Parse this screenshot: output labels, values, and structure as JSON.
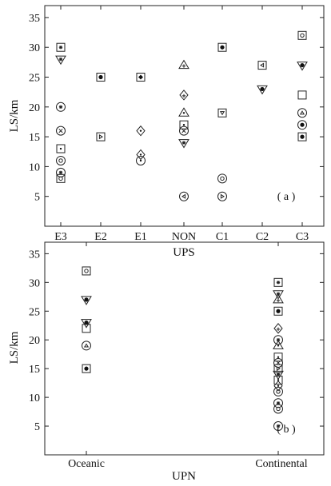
{
  "chart_data": [
    {
      "id": "a",
      "type": "scatter",
      "panel_label": "( a )",
      "xlabel": "UPS",
      "ylabel": "LS/km",
      "categories": [
        "E3",
        "E2",
        "E1",
        "NON",
        "C1",
        "C2",
        "C3"
      ],
      "ylim": [
        0,
        37
      ],
      "yticks": [
        5,
        10,
        15,
        20,
        25,
        30,
        35
      ],
      "grid": false,
      "points": [
        {
          "x": "E3",
          "y": 30,
          "marker": "square-star"
        },
        {
          "x": "E3",
          "y": 28,
          "marker": "triangle-down-star"
        },
        {
          "x": "E3",
          "y": 20,
          "marker": "circle-star"
        },
        {
          "x": "E3",
          "y": 16,
          "marker": "circle-x"
        },
        {
          "x": "E3",
          "y": 13,
          "marker": "square-dot"
        },
        {
          "x": "E3",
          "y": 11,
          "marker": "circle-circle"
        },
        {
          "x": "E3",
          "y": 9,
          "marker": "circle-star"
        },
        {
          "x": "E3",
          "y": 8,
          "marker": "square-circle"
        },
        {
          "x": "E2",
          "y": 25,
          "marker": "square-filled"
        },
        {
          "x": "E2",
          "y": 15,
          "marker": "square-triangle-right"
        },
        {
          "x": "E1",
          "y": 25,
          "marker": "square-filled-diamond"
        },
        {
          "x": "E1",
          "y": 16,
          "marker": "diamond-dot"
        },
        {
          "x": "E1",
          "y": 12,
          "marker": "diamond-dot"
        },
        {
          "x": "E1",
          "y": 11,
          "marker": "circle-dot"
        },
        {
          "x": "NON",
          "y": 27,
          "marker": "triangle-plus"
        },
        {
          "x": "NON",
          "y": 22,
          "marker": "diamond-plus"
        },
        {
          "x": "NON",
          "y": 19,
          "marker": "triangle-dot"
        },
        {
          "x": "NON",
          "y": 17,
          "marker": "square-dot"
        },
        {
          "x": "NON",
          "y": 16,
          "marker": "circle-x"
        },
        {
          "x": "NON",
          "y": 14,
          "marker": "triangle-down-star"
        },
        {
          "x": "NON",
          "y": 5,
          "marker": "circle-triangle-left"
        },
        {
          "x": "C1",
          "y": 30,
          "marker": "square-filled"
        },
        {
          "x": "C1",
          "y": 19,
          "marker": "square-triangle-down"
        },
        {
          "x": "C1",
          "y": 8,
          "marker": "circle-circle"
        },
        {
          "x": "C1",
          "y": 5,
          "marker": "circle-triangle-right"
        },
        {
          "x": "C2",
          "y": 27,
          "marker": "square-triangle-left"
        },
        {
          "x": "C2",
          "y": 23,
          "marker": "triangle-down-filled"
        },
        {
          "x": "C3",
          "y": 32,
          "marker": "square-circle"
        },
        {
          "x": "C3",
          "y": 27,
          "marker": "triangle-down-filled"
        },
        {
          "x": "C3",
          "y": 22,
          "marker": "square-empty"
        },
        {
          "x": "C3",
          "y": 19,
          "marker": "circle-triangle"
        },
        {
          "x": "C3",
          "y": 17,
          "marker": "circle-filled"
        },
        {
          "x": "C3",
          "y": 15,
          "marker": "square-filled"
        }
      ]
    },
    {
      "id": "b",
      "type": "scatter",
      "panel_label": "( b )",
      "xlabel": "UPN",
      "ylabel": "LS/km",
      "categories": [
        "Oceanic",
        "Continental"
      ],
      "xlabels_shown": [
        "Oceanic",
        "UPN",
        "Continental"
      ],
      "ylim": [
        0,
        37
      ],
      "yticks": [
        5,
        10,
        15,
        20,
        25,
        30,
        35
      ],
      "grid": false,
      "points": [
        {
          "x": "Oceanic",
          "y": 32,
          "marker": "square-circle"
        },
        {
          "x": "Oceanic",
          "y": 27,
          "marker": "triangle-down-filled"
        },
        {
          "x": "Oceanic",
          "y": 23,
          "marker": "triangle-down-filled"
        },
        {
          "x": "Oceanic",
          "y": 22,
          "marker": "square-empty"
        },
        {
          "x": "Oceanic",
          "y": 19,
          "marker": "circle-triangle"
        },
        {
          "x": "Oceanic",
          "y": 15,
          "marker": "square-filled"
        },
        {
          "x": "Continental",
          "y": 30,
          "marker": "square-star"
        },
        {
          "x": "Continental",
          "y": 28,
          "marker": "triangle-down-star"
        },
        {
          "x": "Continental",
          "y": 27,
          "marker": "triangle-plus"
        },
        {
          "x": "Continental",
          "y": 25,
          "marker": "square-filled"
        },
        {
          "x": "Continental",
          "y": 22,
          "marker": "diamond-plus"
        },
        {
          "x": "Continental",
          "y": 20,
          "marker": "circle-star"
        },
        {
          "x": "Continental",
          "y": 19,
          "marker": "triangle-dot"
        },
        {
          "x": "Continental",
          "y": 17,
          "marker": "square-dot"
        },
        {
          "x": "Continental",
          "y": 16,
          "marker": "circle-x"
        },
        {
          "x": "Continental",
          "y": 15,
          "marker": "square-triangle-right"
        },
        {
          "x": "Continental",
          "y": 14,
          "marker": "triangle-down-star"
        },
        {
          "x": "Continental",
          "y": 13,
          "marker": "square-dot"
        },
        {
          "x": "Continental",
          "y": 12,
          "marker": "diamond-dot"
        },
        {
          "x": "Continental",
          "y": 11,
          "marker": "circle-circle"
        },
        {
          "x": "Continental",
          "y": 9,
          "marker": "circle-star"
        },
        {
          "x": "Continental",
          "y": 8,
          "marker": "circle-circle"
        },
        {
          "x": "Continental",
          "y": 5,
          "marker": "circle-star"
        }
      ]
    }
  ]
}
